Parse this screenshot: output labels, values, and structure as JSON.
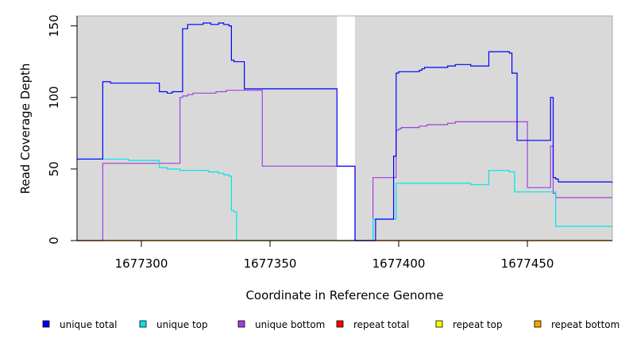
{
  "chart_data": {
    "type": "line",
    "xlabel": "Coordinate in Reference Genome",
    "ylabel": "Read Coverage Depth",
    "xlim": [
      1677275,
      1677483
    ],
    "ylim": [
      0,
      157
    ],
    "x_ticks": [
      1677300,
      1677350,
      1677400,
      1677450
    ],
    "y_ticks": [
      0,
      50,
      100,
      150
    ],
    "gap": [
      1677376,
      1677383
    ],
    "panel_color": "#d9d9d9",
    "grid": false,
    "legend_position": "bottom",
    "series": [
      {
        "name": "unique total",
        "color": "#0000ff",
        "x": [
          1677275,
          1677284,
          1677285,
          1677287,
          1677288,
          1677289,
          1677306,
          1677307,
          1677309,
          1677310,
          1677312,
          1677315,
          1677316,
          1677318,
          1677319,
          1677324,
          1677325,
          1677327,
          1677330,
          1677332,
          1677333,
          1677334,
          1677335,
          1677336,
          1677340,
          1677347,
          1677376,
          1677383,
          1677391,
          1677398,
          1677399,
          1677400,
          1677408,
          1677409,
          1677410,
          1677419,
          1677420,
          1677422,
          1677423,
          1677428,
          1677435,
          1677442,
          1677443,
          1677444,
          1677446,
          1677459,
          1677460,
          1677461,
          1677462,
          1677483
        ],
        "y": [
          57,
          57,
          111,
          111,
          110,
          110,
          110,
          104,
          104,
          103,
          104,
          104,
          148,
          151,
          151,
          152,
          152,
          151,
          152,
          151,
          151,
          150,
          126,
          125,
          106,
          106,
          52,
          0,
          15,
          59,
          117,
          118,
          119,
          120,
          121,
          122,
          122,
          123,
          123,
          122,
          132,
          132,
          131,
          117,
          70,
          100,
          44,
          43,
          41,
          40
        ]
      },
      {
        "name": "unique top",
        "color": "#00e5e5",
        "x": [
          1677275,
          1677284,
          1677295,
          1677306,
          1677307,
          1677309,
          1677310,
          1677312,
          1677315,
          1677324,
          1677326,
          1677330,
          1677332,
          1677334,
          1677335,
          1677336,
          1677337,
          1677376,
          1677383,
          1677390,
          1677398,
          1677399,
          1677428,
          1677435,
          1677443,
          1677445,
          1677459,
          1677461,
          1677483
        ],
        "y": [
          57,
          57,
          56,
          56,
          51,
          51,
          50,
          50,
          49,
          49,
          48,
          47,
          46,
          45,
          21,
          20,
          0,
          0,
          0,
          15,
          15,
          40,
          39,
          49,
          48,
          34,
          34,
          10,
          10
        ]
      },
      {
        "name": "unique bottom",
        "color": "#a040e0",
        "x": [
          1677275,
          1677285,
          1677295,
          1677314,
          1677315,
          1677316,
          1677318,
          1677319,
          1677320,
          1677321,
          1677322,
          1677323,
          1677326,
          1677329,
          1677330,
          1677331,
          1677332,
          1677333,
          1677334,
          1677335,
          1677340,
          1677347,
          1677376,
          1677383,
          1677390,
          1677398,
          1677399,
          1677400,
          1677401,
          1677402,
          1677403,
          1677404,
          1677406,
          1677407,
          1677408,
          1677409,
          1677410,
          1677411,
          1677412,
          1677413,
          1677414,
          1677415,
          1677416,
          1677418,
          1677419,
          1677420,
          1677421,
          1677422,
          1677423,
          1677424,
          1677425,
          1677428,
          1677435,
          1677436,
          1677437,
          1677438,
          1677439,
          1677440,
          1677441,
          1677442,
          1677443,
          1677444,
          1677445,
          1677446,
          1677447,
          1677448,
          1677449,
          1677450,
          1677451,
          1677452,
          1677453,
          1677454,
          1677455,
          1677456,
          1677457,
          1677458,
          1677459,
          1677460,
          1677461,
          1677483
        ],
        "y": [
          0,
          54,
          54,
          54,
          100,
          101,
          102,
          102,
          103,
          103,
          103,
          103,
          103,
          104,
          104,
          104,
          104,
          105,
          105,
          105,
          105,
          52,
          52,
          0,
          44,
          44,
          77,
          78,
          79,
          79,
          79,
          79,
          79,
          79,
          80,
          80,
          80,
          81,
          81,
          81,
          81,
          81,
          81,
          81,
          82,
          82,
          82,
          83,
          83,
          83,
          83,
          83,
          83,
          83,
          83,
          83,
          83,
          83,
          83,
          83,
          83,
          83,
          83,
          83,
          83,
          83,
          83,
          37,
          37,
          37,
          37,
          37,
          37,
          37,
          37,
          37,
          66,
          33,
          30,
          30
        ]
      },
      {
        "name": "repeat total",
        "color": "#ff0000",
        "x": [
          1677275,
          1677483
        ],
        "y": [
          0,
          0
        ]
      },
      {
        "name": "repeat top",
        "color": "#ffff00",
        "x": [
          1677275,
          1677483
        ],
        "y": [
          0,
          0
        ]
      },
      {
        "name": "repeat bottom",
        "color": "#ffa500",
        "x": [
          1677275,
          1677483
        ],
        "y": [
          0,
          0
        ]
      }
    ]
  }
}
